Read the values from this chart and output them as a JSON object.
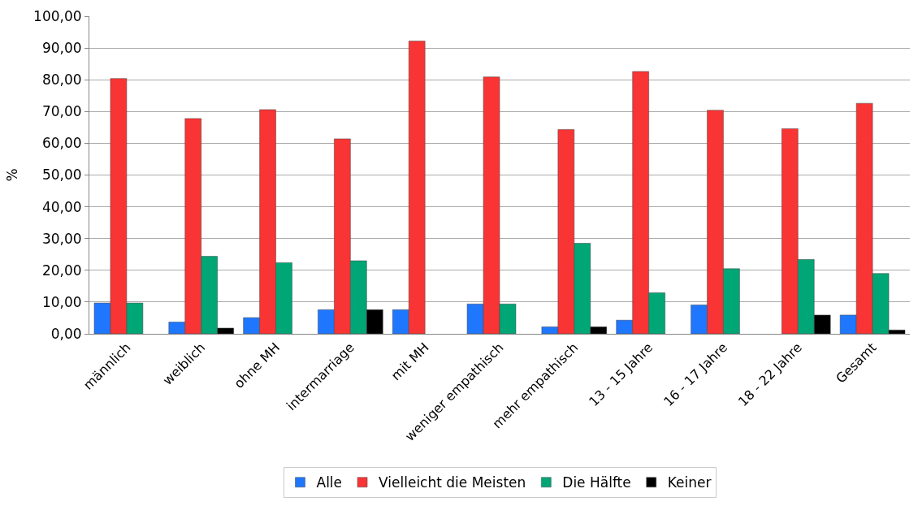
{
  "chart_data": {
    "type": "bar",
    "ylabel": "%",
    "categories": [
      "männlich",
      "weiblich",
      "ohne MH",
      "intermarriage",
      "mit MH",
      "weniger empathisch",
      "mehr empathisch",
      "13 - 15 Jahre",
      "16 - 17 Jahre",
      "18 - 22 Jahre",
      "Gesamt"
    ],
    "series": [
      {
        "name": "Alle",
        "color": "#1f77ff",
        "values": [
          9.7,
          3.7,
          5.1,
          7.6,
          7.6,
          9.4,
          2.2,
          4.3,
          9.1,
          null,
          5.9
        ]
      },
      {
        "name": "Vielleicht die Meisten",
        "color": "#f93434",
        "values": [
          80.4,
          67.8,
          70.6,
          61.4,
          92.2,
          80.9,
          64.3,
          82.6,
          70.4,
          64.6,
          72.6
        ]
      },
      {
        "name": "Die Hälfte",
        "color": "#00a676",
        "values": [
          9.7,
          24.4,
          22.4,
          23.0,
          null,
          9.4,
          28.5,
          12.9,
          20.5,
          23.4,
          19.0
        ]
      },
      {
        "name": "Keiner",
        "color": "#000000",
        "values": [
          null,
          1.8,
          null,
          7.6,
          null,
          null,
          2.2,
          null,
          null,
          5.9,
          1.2
        ]
      }
    ],
    "ylim": [
      0,
      100
    ],
    "yticks": [
      {
        "value": 0,
        "label": "0,00"
      },
      {
        "value": 10,
        "label": "10,00"
      },
      {
        "value": 20,
        "label": "20,00"
      },
      {
        "value": 30,
        "label": "30,00"
      },
      {
        "value": 40,
        "label": "40,00"
      },
      {
        "value": 50,
        "label": "50,00"
      },
      {
        "value": 60,
        "label": "60,00"
      },
      {
        "value": 70,
        "label": "70,00"
      },
      {
        "value": 80,
        "label": "80,00"
      },
      {
        "value": 90,
        "label": "90,00"
      },
      {
        "value": 100,
        "label": "100,00"
      }
    ],
    "grid": "y",
    "legend": "bottom"
  }
}
